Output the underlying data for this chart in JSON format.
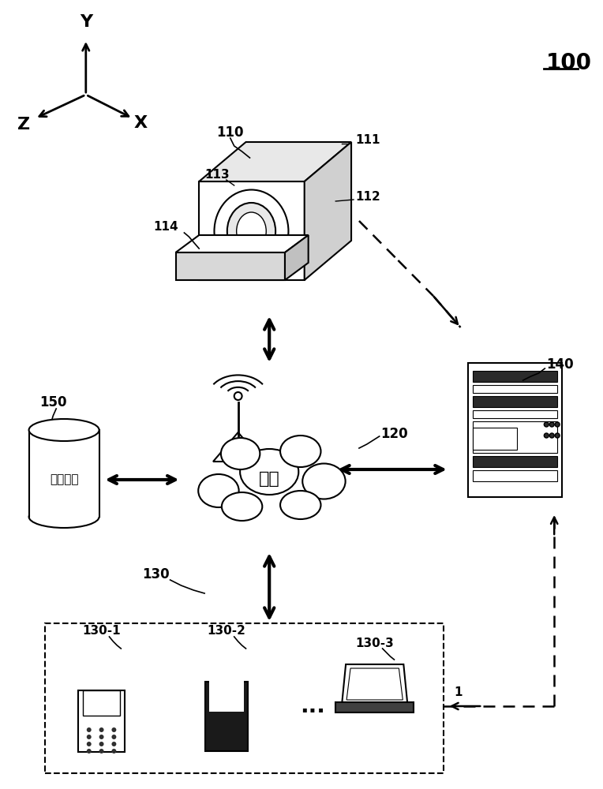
{
  "bg_color": "#ffffff",
  "label_100": "100",
  "label_110": "110",
  "label_111": "111",
  "label_112": "112",
  "label_113": "113",
  "label_114": "114",
  "label_120": "120",
  "label_130": "130",
  "label_130_1": "130-1",
  "label_130_2": "130-2",
  "label_130_3": "130-3",
  "label_140": "140",
  "label_150": "150",
  "label_network": "网络",
  "label_storage": "存储设备"
}
